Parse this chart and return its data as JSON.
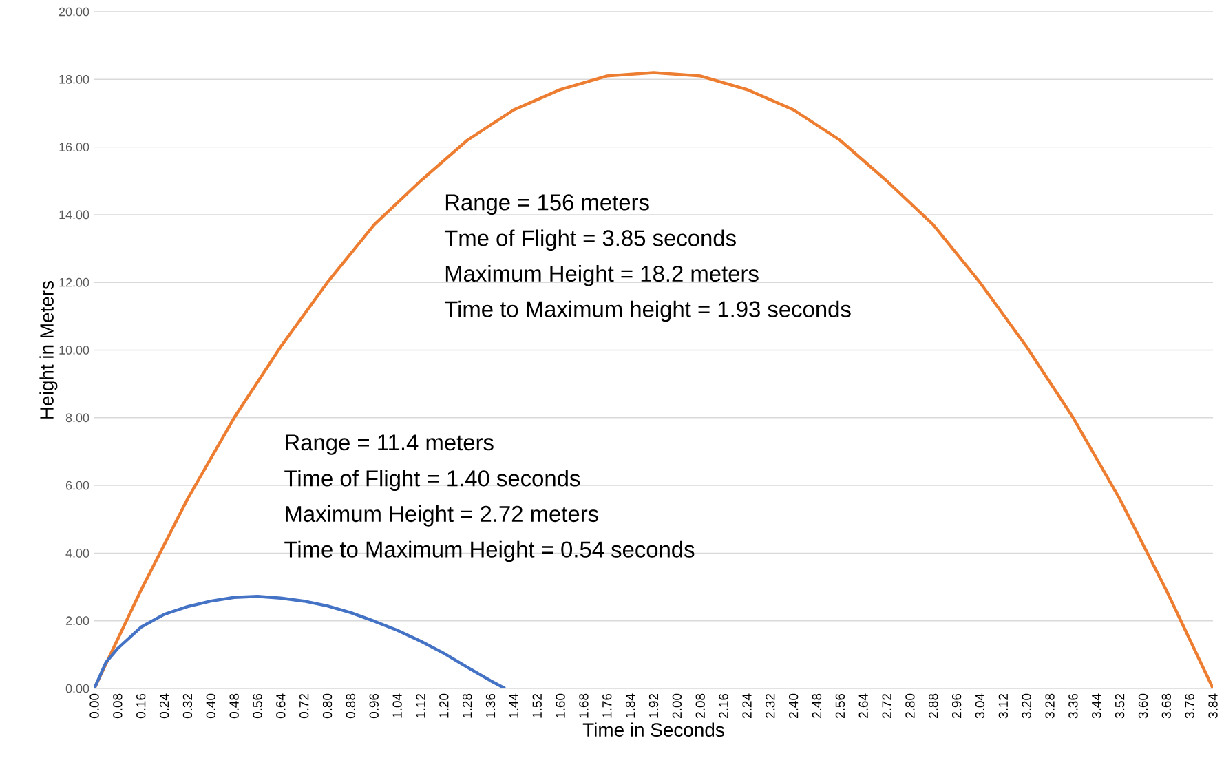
{
  "chart_data": {
    "type": "line",
    "xlabel": "Time in Seconds",
    "ylabel": "Height in Meters",
    "series": [
      {
        "color": "#ed7d31",
        "x": [
          0,
          0.16,
          0.32,
          0.48,
          0.64,
          0.8,
          0.96,
          1.12,
          1.28,
          1.44,
          1.6,
          1.76,
          1.92,
          2.08,
          2.24,
          2.4,
          2.56,
          2.72,
          2.88,
          3.04,
          3.2,
          3.36,
          3.52,
          3.68,
          3.84
        ],
        "values": [
          0,
          2.9,
          5.6,
          8.0,
          10.1,
          12.0,
          13.7,
          15.0,
          16.2,
          17.1,
          17.7,
          18.1,
          18.2,
          18.1,
          17.7,
          17.1,
          16.2,
          15.0,
          13.7,
          12.0,
          10.1,
          8.0,
          5.6,
          2.9,
          0
        ]
      },
      {
        "color": "#4472c4",
        "x": [
          0,
          0.04,
          0.08,
          0.16,
          0.24,
          0.32,
          0.4,
          0.48,
          0.56,
          0.64,
          0.72,
          0.8,
          0.88,
          0.96,
          1.04,
          1.12,
          1.2,
          1.28,
          1.36,
          1.41
        ],
        "values": [
          0,
          0.77,
          1.18,
          1.81,
          2.19,
          2.42,
          2.58,
          2.69,
          2.72,
          2.67,
          2.58,
          2.44,
          2.24,
          1.99,
          1.72,
          1.4,
          1.04,
          0.63,
          0.23,
          0
        ]
      }
    ],
    "xlim": [
      0,
      3.84
    ],
    "ylim": [
      0,
      20
    ],
    "xticks": [
      {
        "value": 0,
        "label": "0.00"
      },
      {
        "value": 0.08,
        "label": "0.08"
      },
      {
        "value": 0.16,
        "label": "0.16"
      },
      {
        "value": 0.24,
        "label": "0.24"
      },
      {
        "value": 0.32,
        "label": "0.32"
      },
      {
        "value": 0.4,
        "label": "0.40"
      },
      {
        "value": 0.48,
        "label": "0.48"
      },
      {
        "value": 0.56,
        "label": "0.56"
      },
      {
        "value": 0.64,
        "label": "0.64"
      },
      {
        "value": 0.72,
        "label": "0.72"
      },
      {
        "value": 0.8,
        "label": "0.80"
      },
      {
        "value": 0.88,
        "label": "0.88"
      },
      {
        "value": 0.96,
        "label": "0.96"
      },
      {
        "value": 1.04,
        "label": "1.04"
      },
      {
        "value": 1.12,
        "label": "1.12"
      },
      {
        "value": 1.2,
        "label": "1.20"
      },
      {
        "value": 1.28,
        "label": "1.28"
      },
      {
        "value": 1.36,
        "label": "1.36"
      },
      {
        "value": 1.44,
        "label": "1.44"
      },
      {
        "value": 1.52,
        "label": "1.52"
      },
      {
        "value": 1.6,
        "label": "1.60"
      },
      {
        "value": 1.68,
        "label": "1.68"
      },
      {
        "value": 1.76,
        "label": "1.76"
      },
      {
        "value": 1.84,
        "label": "1.84"
      },
      {
        "value": 1.92,
        "label": "1.92"
      },
      {
        "value": 2.0,
        "label": "2.00"
      },
      {
        "value": 2.08,
        "label": "2.08"
      },
      {
        "value": 2.16,
        "label": "2.16"
      },
      {
        "value": 2.24,
        "label": "2.24"
      },
      {
        "value": 2.32,
        "label": "2.32"
      },
      {
        "value": 2.4,
        "label": "2.40"
      },
      {
        "value": 2.48,
        "label": "2.48"
      },
      {
        "value": 2.56,
        "label": "2.56"
      },
      {
        "value": 2.64,
        "label": "2.64"
      },
      {
        "value": 2.72,
        "label": "2.72"
      },
      {
        "value": 2.8,
        "label": "2.80"
      },
      {
        "value": 2.88,
        "label": "2.88"
      },
      {
        "value": 2.96,
        "label": "2.96"
      },
      {
        "value": 3.04,
        "label": "3.04"
      },
      {
        "value": 3.12,
        "label": "3.12"
      },
      {
        "value": 3.2,
        "label": "3.20"
      },
      {
        "value": 3.28,
        "label": "3.28"
      },
      {
        "value": 3.36,
        "label": "3.36"
      },
      {
        "value": 3.44,
        "label": "3.44"
      },
      {
        "value": 3.52,
        "label": "3.52"
      },
      {
        "value": 3.6,
        "label": "3.60"
      },
      {
        "value": 3.68,
        "label": "3.68"
      },
      {
        "value": 3.76,
        "label": "3.76"
      },
      {
        "value": 3.84,
        "label": "3.84"
      }
    ],
    "yticks": [
      {
        "value": 0,
        "label": "0.00"
      },
      {
        "value": 2,
        "label": "2.00"
      },
      {
        "value": 4,
        "label": "4.00"
      },
      {
        "value": 6,
        "label": "6.00"
      },
      {
        "value": 8,
        "label": "8.00"
      },
      {
        "value": 10,
        "label": "10.00"
      },
      {
        "value": 12,
        "label": "12.00"
      },
      {
        "value": 14,
        "label": "14.00"
      },
      {
        "value": 16,
        "label": "16.00"
      },
      {
        "value": 18,
        "label": "18.00"
      },
      {
        "value": 20,
        "label": "20.00"
      }
    ],
    "grid": "y",
    "marker": "none",
    "line_style": "solid",
    "annotations": [
      "Range = 156 meters",
      "Tme of Flight = 3.85 seconds",
      "Maximum Height = 18.2 meters",
      "Time to Maximum height = 1.93 seconds",
      "Range = 11.4 meters",
      "Time of Flight = 1.40 seconds",
      "Maximum Height = 2.72 meters",
      "Time to Maximum Height = 0.54 seconds"
    ]
  }
}
